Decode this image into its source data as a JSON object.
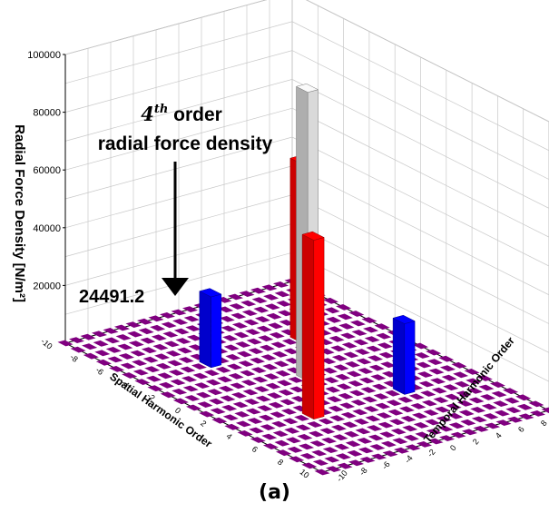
{
  "chart_data": {
    "type": "bar3d",
    "title": "",
    "xlabel": "Spatial Harmonic Order",
    "ylabel": "Temporal Harmonic Order",
    "zlabel": "Radial Force Density [N/m²]",
    "xlim": [
      -10,
      10
    ],
    "ylim": [
      -10,
      10
    ],
    "zlim": [
      0,
      100000
    ],
    "x_ticks": [
      "-10",
      "-8",
      "-6",
      "-4",
      "-2",
      "0",
      "2",
      "4",
      "6",
      "8",
      "10"
    ],
    "y_ticks": [
      "-10",
      "-8",
      "-6",
      "-4",
      "-2",
      "0",
      "2",
      "4",
      "6",
      "8",
      "10"
    ],
    "z_ticks": [
      "20000",
      "40000",
      "60000",
      "80000",
      "100000"
    ],
    "grid": true,
    "bars": [
      {
        "x": 0,
        "y": 0,
        "value": 100000,
        "color": "#d9d9d9"
      },
      {
        "x": -4,
        "y": 4,
        "value": 62000,
        "color": "#ff0000"
      },
      {
        "x": 4,
        "y": -4,
        "value": 62000,
        "color": "#ff0000"
      },
      {
        "x": -4,
        "y": -4,
        "value": 24491.2,
        "color": "#0000ff"
      },
      {
        "x": 4,
        "y": 4,
        "value": 24491.2,
        "color": "#0000ff"
      }
    ],
    "floor_color": "#800080",
    "annotation": {
      "value_label": "24491.2",
      "value_color": "#0000ff",
      "order_superscript": "th",
      "order_number": "4",
      "line1_rest": " order",
      "line2": "radial force density"
    }
  },
  "caption": "(a)"
}
